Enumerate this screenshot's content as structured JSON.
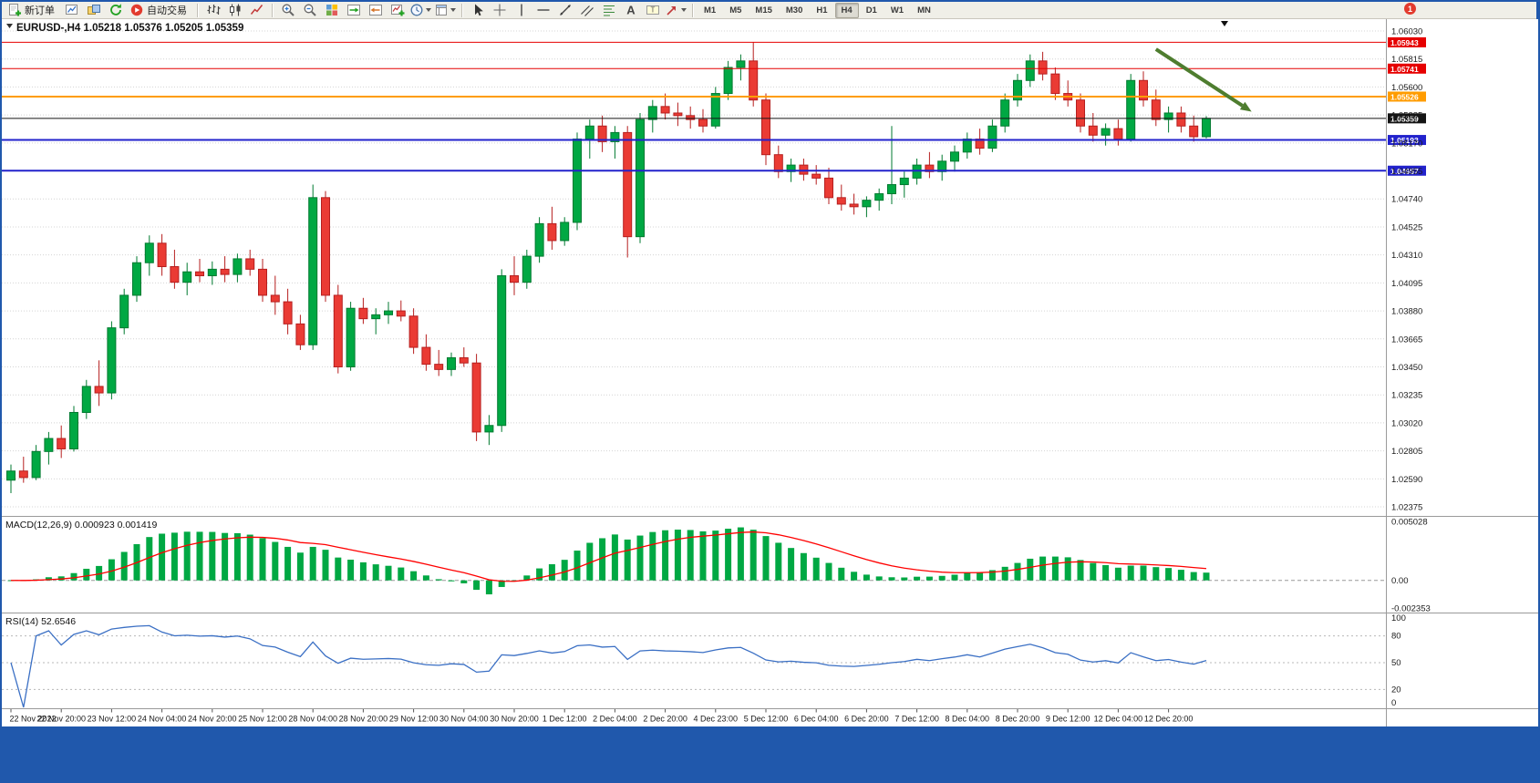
{
  "toolbar": {
    "new_order_label": "新订单",
    "autotrading_label": "自动交易",
    "timeframes": [
      "M1",
      "M5",
      "M15",
      "M30",
      "H1",
      "H4",
      "D1",
      "W1",
      "MN"
    ],
    "active_timeframe": "H4",
    "notification_badge": "1",
    "groups": [
      [
        {
          "name": "new-order",
          "icon": "new-order-icon",
          "label": "新订单"
        },
        {
          "name": "chart-window",
          "icon": "chart-window-icon"
        },
        {
          "name": "profiles",
          "icon": "profiles-icon"
        },
        {
          "name": "refresh",
          "icon": "refresh-icon"
        },
        {
          "name": "autotrading",
          "icon": "autotrading-icon",
          "label": "自动交易"
        }
      ],
      [
        {
          "name": "bar-chart",
          "icon": "bar-chart-icon"
        },
        {
          "name": "candlestick-chart",
          "icon": "candlestick-icon"
        },
        {
          "name": "line-chart",
          "icon": "line-chart-icon"
        }
      ],
      [
        {
          "name": "zoom-in",
          "icon": "zoom-in-icon"
        },
        {
          "name": "zoom-out",
          "icon": "zoom-out-icon"
        },
        {
          "name": "tile-windows",
          "icon": "tile-windows-icon"
        },
        {
          "name": "auto-scroll",
          "icon": "autoscroll-icon"
        },
        {
          "name": "chart-shift",
          "icon": "chart-shift-icon"
        },
        {
          "name": "indicators",
          "icon": "indicators-icon"
        },
        {
          "name": "periods",
          "icon": "periods-icon",
          "dropdown": true
        },
        {
          "name": "templates",
          "icon": "templates-icon",
          "dropdown": true
        }
      ],
      [
        {
          "name": "cursor",
          "icon": "cursor-icon"
        },
        {
          "name": "crosshair",
          "icon": "crosshair-icon"
        },
        {
          "name": "vertical-line",
          "icon": "vertical-line-icon"
        },
        {
          "name": "horizontal-line",
          "icon": "horizontal-line-icon"
        },
        {
          "name": "trendline",
          "icon": "trendline-icon"
        },
        {
          "name": "channel",
          "icon": "channel-icon"
        },
        {
          "name": "fibonacci",
          "icon": "fibonacci-icon"
        },
        {
          "name": "text",
          "icon": "text-icon"
        },
        {
          "name": "text-label",
          "icon": "text-label-icon"
        },
        {
          "name": "arrows",
          "icon": "arrows-icon",
          "dropdown": true
        }
      ]
    ]
  },
  "chart": {
    "symbol_info": "EURUSD-,H4 1.05218 1.05376 1.05205 1.05359",
    "price_axis_labels": [
      "1.06030",
      "1.05815",
      "1.05600",
      "1.05385",
      "1.05170",
      "1.04955",
      "1.04740",
      "1.04525",
      "1.04310",
      "1.04095",
      "1.03880",
      "1.03665",
      "1.03450",
      "1.03235",
      "1.03020",
      "1.02805",
      "1.02590",
      "1.02375"
    ],
    "levels": [
      {
        "label": "1.05943",
        "value": 1.05943,
        "color": "#e60000",
        "width": 1
      },
      {
        "label": "1.05741",
        "value": 1.05741,
        "color": "#e60000",
        "width": 1
      },
      {
        "label": "1.05526",
        "value": 1.05526,
        "color": "#ff9c00",
        "width": 2
      },
      {
        "label": "1.05359",
        "value": 1.05359,
        "color": "#141414",
        "width": 1
      },
      {
        "label": "1.05193",
        "value": 1.05193,
        "color": "#2222cc",
        "width": 2
      },
      {
        "label": "1.04957",
        "value": 1.04957,
        "color": "#2222cc",
        "width": 2
      }
    ],
    "colors": {
      "bull": "#00a843",
      "bull_border": "#007a30",
      "bear": "#ea3b34",
      "bear_border": "#b61f1f",
      "grid": "#d4d4d4",
      "macd_hist": "#00a843",
      "macd_signal": "#ff0000",
      "rsi_line": "#3a6fc4",
      "annotation": "#4e7d2f"
    }
  },
  "indicators": {
    "macd": {
      "label": "MACD(12,26,9) 0.000923 0.001419",
      "fast": 12,
      "slow": 26,
      "signal": 9,
      "value": "0.000923",
      "signal_value": "0.001419",
      "axis_labels": [
        "0.005028",
        "0.00",
        "-0.002353"
      ],
      "axis_max": 0.005028,
      "axis_min": -0.002353
    },
    "rsi": {
      "label": "RSI(14) 52.6546",
      "period": 14,
      "value": "52.6546",
      "levels": [
        80,
        50,
        20
      ],
      "axis_labels": [
        "100",
        "80",
        "50",
        "20",
        "0"
      ]
    }
  },
  "chart_data": {
    "type": "candlestick",
    "symbol": "EURUSD-",
    "timeframe": "H4",
    "last_ohlc": {
      "open": 1.05218,
      "high": 1.05376,
      "low": 1.05205,
      "close": 1.05359
    },
    "x_labels": [
      "22 Nov 2022",
      "22 Nov 20:00",
      "23 Nov 12:00",
      "24 Nov 04:00",
      "24 Nov 20:00",
      "25 Nov 12:00",
      "28 Nov 04:00",
      "28 Nov 20:00",
      "29 Nov 12:00",
      "30 Nov 04:00",
      "30 Nov 20:00",
      "1 Dec 12:00",
      "2 Dec 04:00",
      "2 Dec 20:00",
      "4 Dec 23:00",
      "5 Dec 12:00",
      "6 Dec 04:00",
      "6 Dec 20:00",
      "7 Dec 12:00",
      "8 Dec 04:00",
      "8 Dec 20:00",
      "9 Dec 12:00",
      "12 Dec 04:00",
      "12 Dec 20:00"
    ],
    "ohlc": [
      [
        1.0258,
        1.027,
        1.0248,
        1.0265
      ],
      [
        1.0265,
        1.0276,
        1.0256,
        1.026
      ],
      [
        1.026,
        1.0285,
        1.0258,
        1.028
      ],
      [
        1.028,
        1.0295,
        1.027,
        1.029
      ],
      [
        1.029,
        1.03,
        1.0275,
        1.0282
      ],
      [
        1.0282,
        1.0315,
        1.028,
        1.031
      ],
      [
        1.031,
        1.0335,
        1.0305,
        1.033
      ],
      [
        1.033,
        1.035,
        1.0315,
        1.0325
      ],
      [
        1.0325,
        1.038,
        1.032,
        1.0375
      ],
      [
        1.0375,
        1.0405,
        1.037,
        1.04
      ],
      [
        1.04,
        1.043,
        1.0395,
        1.0425
      ],
      [
        1.0425,
        1.0446,
        1.0415,
        1.044
      ],
      [
        1.044,
        1.0447,
        1.0415,
        1.0422
      ],
      [
        1.0422,
        1.0435,
        1.0405,
        1.041
      ],
      [
        1.041,
        1.0425,
        1.04,
        1.0418
      ],
      [
        1.0418,
        1.0428,
        1.041,
        1.0415
      ],
      [
        1.0415,
        1.0426,
        1.0408,
        1.042
      ],
      [
        1.042,
        1.043,
        1.041,
        1.0416
      ],
      [
        1.0416,
        1.0432,
        1.041,
        1.0428
      ],
      [
        1.0428,
        1.0435,
        1.0415,
        1.042
      ],
      [
        1.042,
        1.0428,
        1.0395,
        1.04
      ],
      [
        1.04,
        1.0415,
        1.0385,
        1.0395
      ],
      [
        1.0395,
        1.0405,
        1.037,
        1.0378
      ],
      [
        1.0378,
        1.0385,
        1.0358,
        1.0362
      ],
      [
        1.0362,
        1.0485,
        1.0358,
        1.0475
      ],
      [
        1.0475,
        1.048,
        1.0395,
        1.04
      ],
      [
        1.04,
        1.0408,
        1.034,
        1.0345
      ],
      [
        1.0345,
        1.0395,
        1.0342,
        1.039
      ],
      [
        1.039,
        1.0398,
        1.0378,
        1.0382
      ],
      [
        1.0382,
        1.039,
        1.037,
        1.0385
      ],
      [
        1.0385,
        1.0395,
        1.0378,
        1.0388
      ],
      [
        1.0388,
        1.0396,
        1.038,
        1.0384
      ],
      [
        1.0384,
        1.039,
        1.0355,
        1.036
      ],
      [
        1.036,
        1.037,
        1.0342,
        1.0347
      ],
      [
        1.0347,
        1.0358,
        1.0338,
        1.0343
      ],
      [
        1.0343,
        1.0356,
        1.0338,
        1.0352
      ],
      [
        1.0352,
        1.036,
        1.0345,
        1.0348
      ],
      [
        1.0348,
        1.0355,
        1.0288,
        1.0295
      ],
      [
        1.0295,
        1.0308,
        1.0285,
        1.03
      ],
      [
        1.03,
        1.042,
        1.0295,
        1.0415
      ],
      [
        1.0415,
        1.043,
        1.04,
        1.041
      ],
      [
        1.041,
        1.0435,
        1.0405,
        1.043
      ],
      [
        1.043,
        1.046,
        1.0425,
        1.0455
      ],
      [
        1.0455,
        1.0468,
        1.0435,
        1.0442
      ],
      [
        1.0442,
        1.046,
        1.0438,
        1.0456
      ],
      [
        1.0456,
        1.0525,
        1.045,
        1.052
      ],
      [
        1.052,
        1.0535,
        1.0505,
        1.053
      ],
      [
        1.053,
        1.0538,
        1.051,
        1.0518
      ],
      [
        1.0518,
        1.053,
        1.0505,
        1.0525
      ],
      [
        1.0525,
        1.053,
        1.0429,
        1.0445
      ],
      [
        1.0445,
        1.054,
        1.044,
        1.0535
      ],
      [
        1.0535,
        1.055,
        1.0525,
        1.0545
      ],
      [
        1.0545,
        1.0555,
        1.0535,
        1.054
      ],
      [
        1.054,
        1.0548,
        1.053,
        1.0538
      ],
      [
        1.0538,
        1.0545,
        1.0528,
        1.0535
      ],
      [
        1.0535,
        1.0543,
        1.0525,
        1.053
      ],
      [
        1.053,
        1.056,
        1.0528,
        1.0555
      ],
      [
        1.0555,
        1.058,
        1.055,
        1.0575
      ],
      [
        1.0575,
        1.0585,
        1.0565,
        1.058
      ],
      [
        1.058,
        1.05943,
        1.0545,
        1.055
      ],
      [
        1.055,
        1.0555,
        1.05,
        1.0508
      ],
      [
        1.0508,
        1.0515,
        1.049,
        1.0495
      ],
      [
        1.0495,
        1.0505,
        1.0487,
        1.05
      ],
      [
        1.05,
        1.0505,
        1.0488,
        1.0493
      ],
      [
        1.0493,
        1.05,
        1.0485,
        1.049
      ],
      [
        1.049,
        1.0498,
        1.047,
        1.0475
      ],
      [
        1.0475,
        1.0485,
        1.0465,
        1.047
      ],
      [
        1.047,
        1.0478,
        1.0462,
        1.0468
      ],
      [
        1.0468,
        1.0476,
        1.046,
        1.0473
      ],
      [
        1.0473,
        1.0482,
        1.0465,
        1.0478
      ],
      [
        1.0478,
        1.053,
        1.047,
        1.0485
      ],
      [
        1.0485,
        1.0495,
        1.0475,
        1.049
      ],
      [
        1.049,
        1.0505,
        1.0485,
        1.05
      ],
      [
        1.05,
        1.051,
        1.049,
        1.0495
      ],
      [
        1.0495,
        1.0508,
        1.0488,
        1.0503
      ],
      [
        1.0503,
        1.0515,
        1.0495,
        1.051
      ],
      [
        1.051,
        1.0525,
        1.0505,
        1.052
      ],
      [
        1.052,
        1.0528,
        1.0508,
        1.0513
      ],
      [
        1.0513,
        1.0535,
        1.051,
        1.053
      ],
      [
        1.053,
        1.0555,
        1.0525,
        1.055
      ],
      [
        1.055,
        1.057,
        1.0545,
        1.0565
      ],
      [
        1.0565,
        1.0585,
        1.056,
        1.058
      ],
      [
        1.058,
        1.0587,
        1.0565,
        1.057
      ],
      [
        1.057,
        1.0575,
        1.055,
        1.0555
      ],
      [
        1.0555,
        1.0565,
        1.0545,
        1.055
      ],
      [
        1.055,
        1.0555,
        1.0525,
        1.053
      ],
      [
        1.053,
        1.054,
        1.0518,
        1.0523
      ],
      [
        1.0523,
        1.0532,
        1.0515,
        1.0528
      ],
      [
        1.0528,
        1.0535,
        1.0515,
        1.052
      ],
      [
        1.052,
        1.057,
        1.0518,
        1.0565
      ],
      [
        1.0565,
        1.0572,
        1.0545,
        1.055
      ],
      [
        1.055,
        1.0558,
        1.053,
        1.0535
      ],
      [
        1.0535,
        1.0545,
        1.0525,
        1.054
      ],
      [
        1.054,
        1.0545,
        1.0525,
        1.053
      ],
      [
        1.053,
        1.0538,
        1.0518,
        1.05218
      ],
      [
        1.05218,
        1.05376,
        1.05205,
        1.05359
      ]
    ]
  },
  "annotations": [
    {
      "type": "arrow",
      "from_index": 91,
      "from_price": 1.0589,
      "to_index": 98.6,
      "to_price": 1.0541,
      "color": "#4e7d2f"
    }
  ]
}
